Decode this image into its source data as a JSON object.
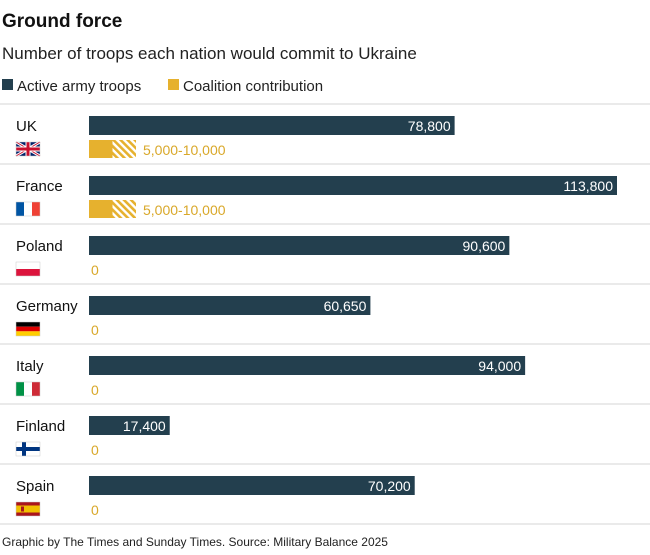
{
  "chart_data": {
    "type": "bar",
    "title": "Ground force",
    "subtitle": "Number of troops each nation would commit to Ukraine",
    "legend": [
      {
        "name": "Active army troops",
        "color": "#233f4e"
      },
      {
        "name": "Coalition contribution",
        "color": "#e6b12e"
      }
    ],
    "categories": [
      "UK",
      "France",
      "Poland",
      "Germany",
      "Italy",
      "Finland",
      "Spain"
    ],
    "flags": [
      "uk-flag-icon",
      "france-flag-icon",
      "poland-flag-icon",
      "germany-flag-icon",
      "italy-flag-icon",
      "finland-flag-icon",
      "spain-flag-icon"
    ],
    "series": [
      {
        "name": "Active army troops",
        "values": [
          78800,
          113800,
          90600,
          60650,
          94000,
          17400,
          70200
        ],
        "labels": [
          "78,800",
          "113,800",
          "90,600",
          "60,650",
          "94,000",
          "17,400",
          "70,200"
        ]
      },
      {
        "name": "Coalition contribution",
        "ranges": [
          [
            5000,
            10000
          ],
          [
            5000,
            10000
          ],
          [
            0,
            0
          ],
          [
            0,
            0
          ],
          [
            0,
            0
          ],
          [
            0,
            0
          ],
          [
            0,
            0
          ]
        ],
        "labels": [
          "5,000-10,000",
          "5,000-10,000",
          "0",
          "0",
          "0",
          "0",
          "0"
        ]
      }
    ],
    "xlim": [
      0,
      120000
    ],
    "grid": false,
    "legend_placement": "top-left"
  },
  "footer": {
    "source": "Graphic by The Times and Sunday Times. Source: Military Balance 2025"
  }
}
